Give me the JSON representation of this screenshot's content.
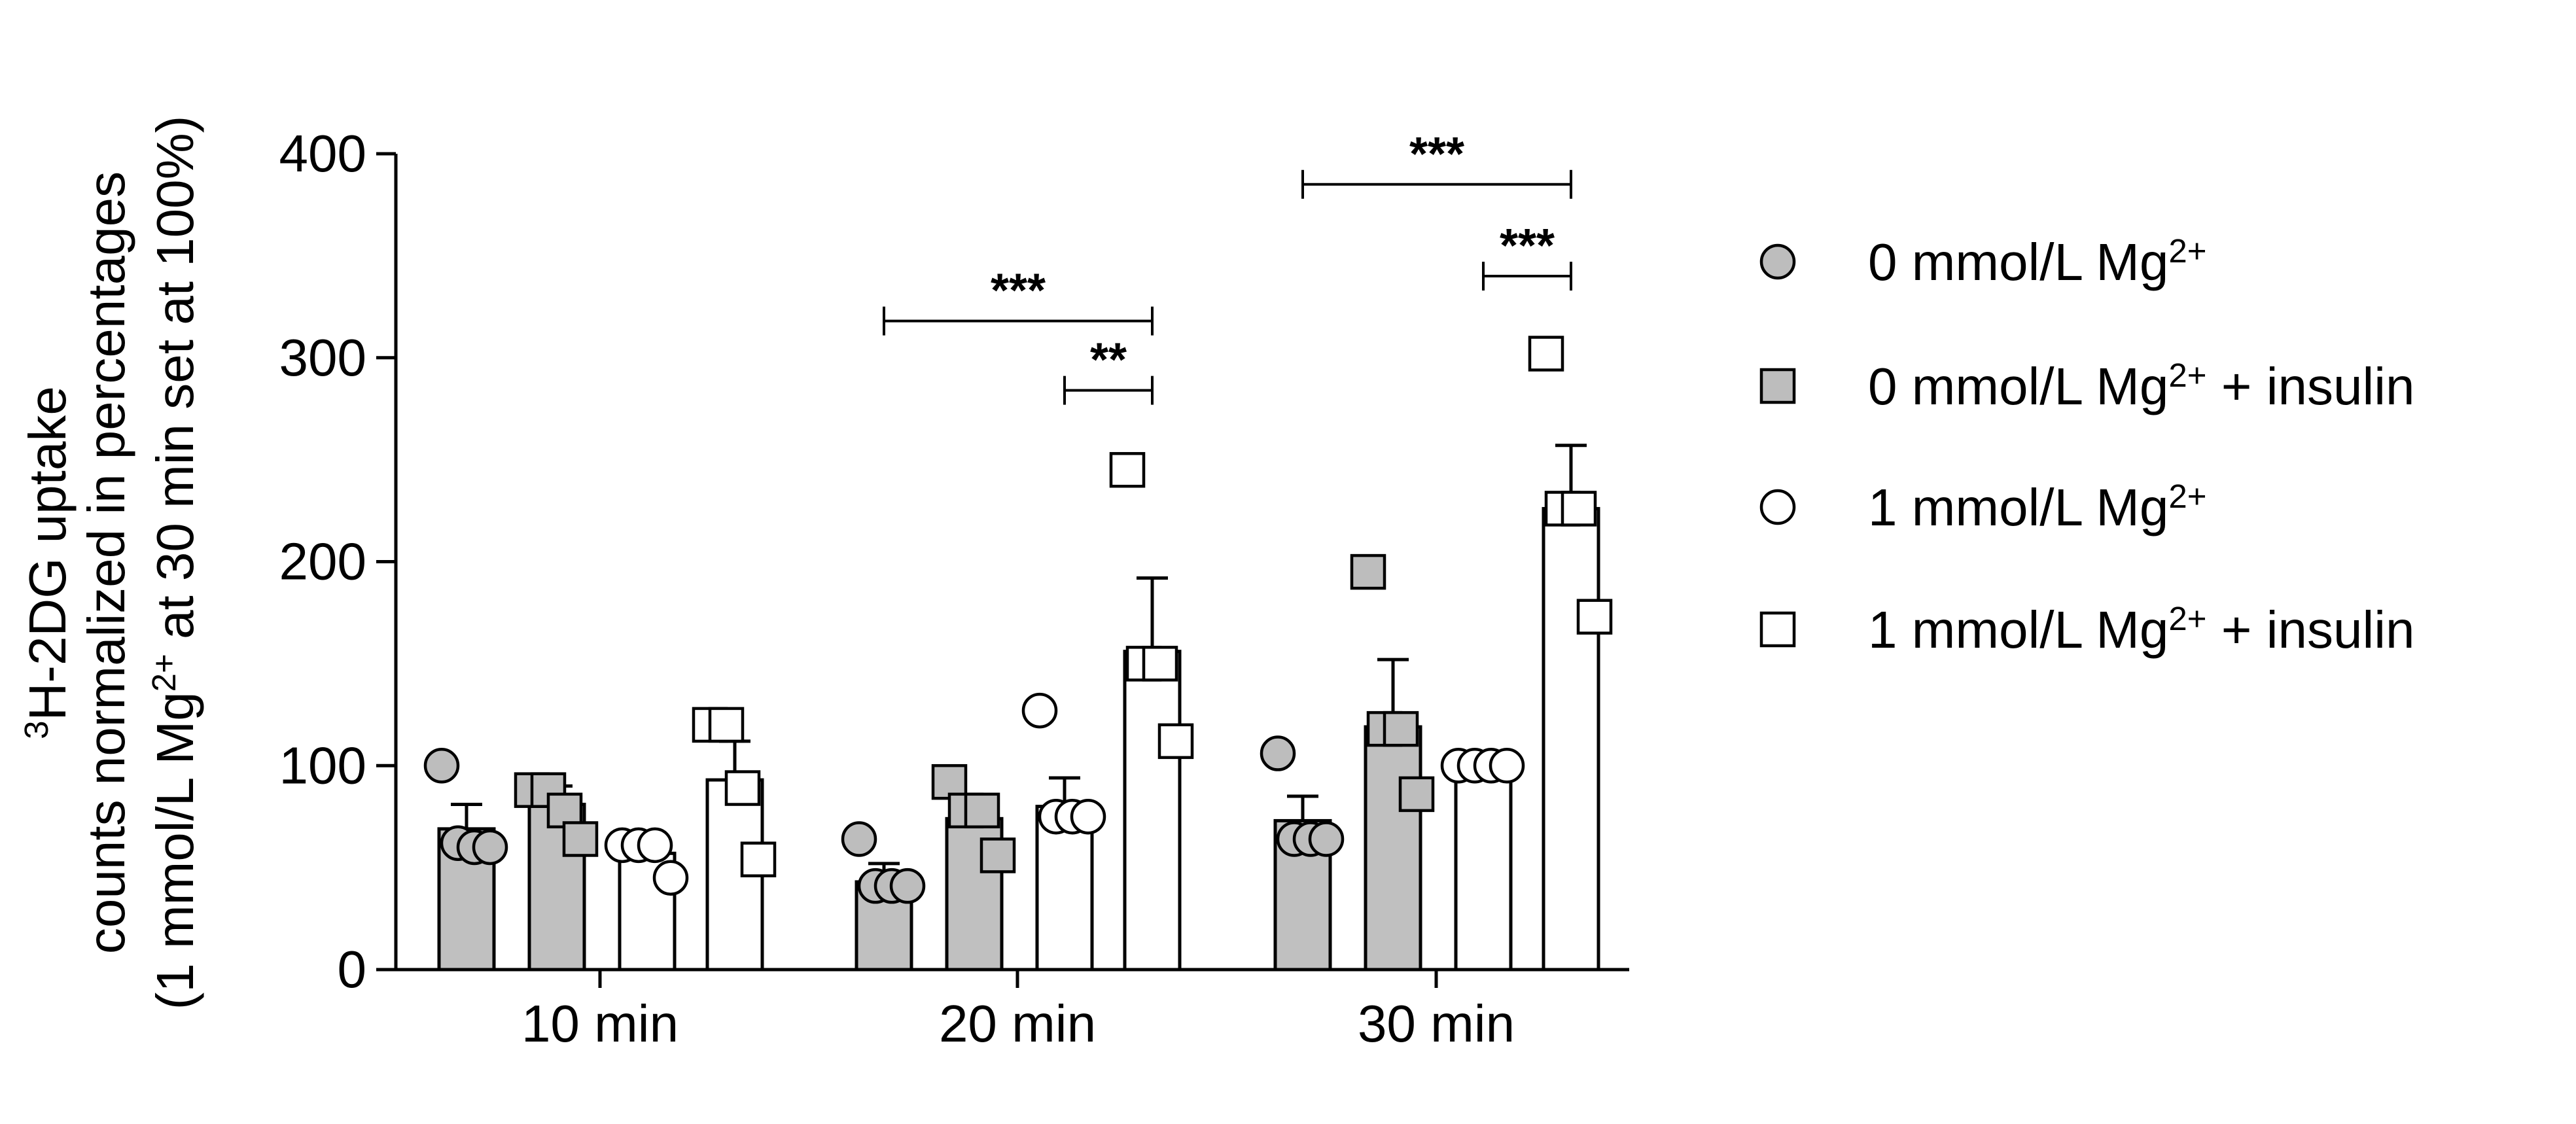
{
  "chart_data": {
    "type": "bar",
    "title": "",
    "ylabel_lines": [
      {
        "parts": [
          {
            "t": "3",
            "sup": true
          },
          {
            "t": "H-2DG uptake"
          }
        ]
      },
      {
        "parts": [
          {
            "t": "counts normalized in percentages"
          }
        ]
      },
      {
        "parts": [
          {
            "t": "(1 mmol/L Mg"
          },
          {
            "t": "2+",
            "sup": true
          },
          {
            "t": " at 30 min set at 100%)"
          }
        ]
      }
    ],
    "xlabel": "",
    "categories": [
      "10 min",
      "20 min",
      "30 min"
    ],
    "ylim": [
      0,
      400
    ],
    "yticks": [
      0,
      100,
      200,
      300,
      400
    ],
    "error_bars": "mean ± SEM",
    "legend_position": "right",
    "series": [
      {
        "name_parts": [
          {
            "t": "0 mmol/L Mg"
          },
          {
            "t": "2+",
            "sup": true
          }
        ],
        "marker": "circle",
        "bar_fill": "#c0c0c0",
        "marker_fill": "#bdbdbd",
        "means": [
          69,
          43,
          73
        ],
        "sem": [
          12,
          9,
          12
        ],
        "points": [
          [
            100,
            62,
            60,
            60
          ],
          [
            64,
            41,
            41,
            41
          ],
          [
            106,
            64,
            64,
            64
          ]
        ]
      },
      {
        "name_parts": [
          {
            "t": "0 mmol/L Mg"
          },
          {
            "t": "2+",
            "sup": true
          },
          {
            "t": "  + insulin"
          }
        ],
        "marker": "square",
        "bar_fill": "#c0c0c0",
        "marker_fill": "#bdbdbd",
        "means": [
          81,
          74,
          119
        ],
        "sem": [
          9,
          9,
          33
        ],
        "points": [
          [
            88,
            88,
            78,
            64
          ],
          [
            92,
            78,
            78,
            56
          ],
          [
            195,
            118,
            118,
            86
          ]
        ]
      },
      {
        "name_parts": [
          {
            "t": "1 mmol/L Mg"
          },
          {
            "t": "2+",
            "sup": true
          }
        ],
        "marker": "circle",
        "bar_fill": "#ffffff",
        "marker_fill": "#ffffff",
        "means": [
          57,
          80,
          100
        ],
        "sem": [
          5,
          14,
          1
        ],
        "points": [
          [
            61,
            61,
            61,
            45
          ],
          [
            127,
            75,
            75,
            75
          ],
          [
            100,
            100,
            100,
            100
          ]
        ]
      },
      {
        "name_parts": [
          {
            "t": "1 mmol/L Mg"
          },
          {
            "t": "2+",
            "sup": true
          },
          {
            "t": "  + insulin"
          }
        ],
        "marker": "square",
        "bar_fill": "#ffffff",
        "marker_fill": "#ffffff",
        "means": [
          93,
          156,
          226
        ],
        "sem": [
          19,
          36,
          31
        ],
        "points": [
          [
            120,
            120,
            89,
            54
          ],
          [
            245,
            150,
            150,
            112
          ],
          [
            302,
            226,
            226,
            173
          ]
        ]
      }
    ],
    "significance": [
      {
        "category": 1,
        "from_series": 0,
        "to_series": 3,
        "y": 318,
        "label": "***"
      },
      {
        "category": 1,
        "from_series": 2,
        "to_series": 3,
        "y": 284,
        "label": "**"
      },
      {
        "category": 2,
        "from_series": 0,
        "to_series": 3,
        "y": 385,
        "label": "***"
      },
      {
        "category": 2,
        "from_series": 2,
        "to_series": 3,
        "y": 340,
        "label": "***"
      }
    ]
  }
}
